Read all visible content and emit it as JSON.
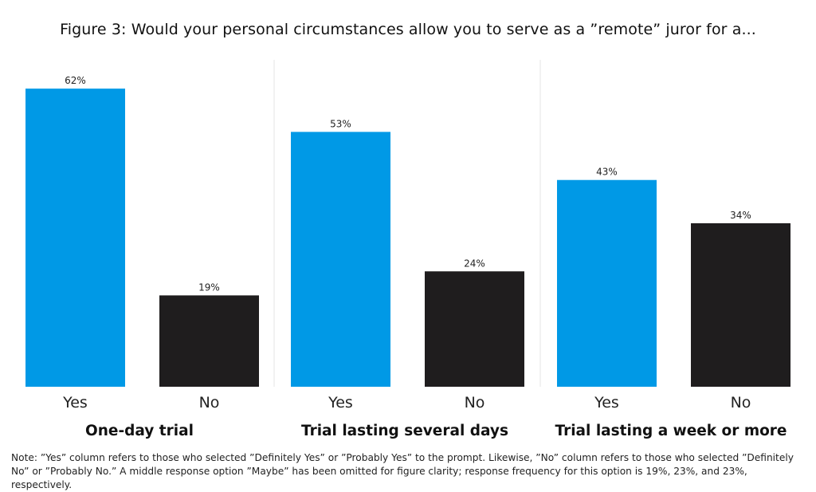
{
  "title": "Figure 3: Would your personal circumstances allow you to serve as a ”remote” juror for a...",
  "note": "Note: ”Yes” column refers to those who selected ”Definitely Yes” or ”Probably Yes” to the prompt. Likewise, ”No” column refers to those who selected ”Definitely No” or ”Probably No.” A middle response option ”Maybe” has been omitted  for figure clarity; response frequency for this option is 19%, 23%, and 23%, respectively.",
  "colors": {
    "yes": "#0099e6",
    "no": "#1f1d1e",
    "divider": "#e6e6e6"
  },
  "chart_data": {
    "type": "bar",
    "title": "Figure 3: Would your personal circumstances allow you to serve as a ”remote” juror for a...",
    "categories": [
      "Yes",
      "No"
    ],
    "groups": [
      {
        "label": "One-day trial",
        "values": [
          62,
          19
        ],
        "value_labels": [
          "62%",
          "19%"
        ]
      },
      {
        "label": "Trial lasting several days",
        "values": [
          53,
          24
        ],
        "value_labels": [
          "53%",
          "24%"
        ]
      },
      {
        "label": "Trial lasting a week or more",
        "values": [
          43,
          34
        ],
        "value_labels": [
          "43%",
          "34%"
        ]
      }
    ],
    "unit": "%",
    "ylim": [
      0,
      70
    ],
    "grid": false,
    "legend": "none"
  }
}
